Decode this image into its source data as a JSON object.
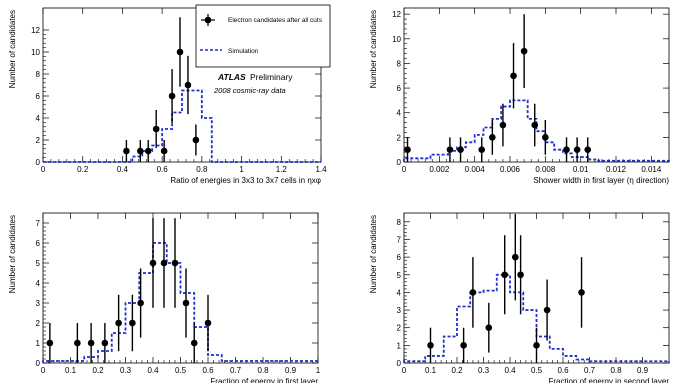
{
  "legend": {
    "data_label": "Electron candidates after all cuts",
    "sim_label": "Simulation",
    "atlas": "ATLAS",
    "preliminary": "Preliminary",
    "dataset": "2008 cosmic-ray data"
  },
  "colors": {
    "data": "#000000",
    "simulation": "#1f2fd0"
  },
  "chart_data": [
    {
      "type": "scatter",
      "xlabel": "Ratio of energies in 3x3 to 3x7 cells in ηxφ",
      "ylabel": "Number of candidates",
      "xlim": [
        0,
        1.4
      ],
      "ylim": [
        0,
        14
      ],
      "xticks": [
        0,
        0.2,
        0.4,
        0.6,
        0.8,
        1,
        1.2,
        1.4
      ],
      "xticklabels": [
        "0",
        "0.2",
        "0.4",
        "0.6",
        "0.8",
        "1",
        "1.2",
        "1.4"
      ],
      "yticks": [
        0,
        2,
        4,
        6,
        8,
        10,
        12
      ],
      "yticklabels": [
        "0",
        "2",
        "4",
        "6",
        "8",
        "10",
        "12"
      ],
      "series": [
        {
          "name": "Electron candidates after all cuts",
          "kind": "points",
          "x": [
            0.42,
            0.49,
            0.53,
            0.57,
            0.61,
            0.65,
            0.69,
            0.73,
            0.77
          ],
          "y": [
            1,
            1,
            1,
            3,
            1,
            6,
            10,
            7,
            2
          ],
          "yerr": [
            1.0,
            1.0,
            1.0,
            1.73,
            1.0,
            2.45,
            3.16,
            2.65,
            1.41
          ]
        },
        {
          "name": "Simulation",
          "kind": "step",
          "edges": [
            0.45,
            0.5,
            0.55,
            0.6,
            0.65,
            0.7,
            0.75,
            0.8,
            0.85
          ],
          "values": [
            0.5,
            1,
            1.5,
            3,
            4.5,
            6.5,
            6.5,
            4
          ]
        }
      ]
    },
    {
      "type": "scatter",
      "xlabel": "Shower width in first layer (η direction)",
      "ylabel": "Number of candidates",
      "xlim": [
        0,
        0.015
      ],
      "ylim": [
        0,
        12.5
      ],
      "xticks": [
        0,
        0.002,
        0.004,
        0.006,
        0.008,
        0.01,
        0.012,
        0.014
      ],
      "xticklabels": [
        "0",
        "0.002",
        "0.004",
        "0.006",
        "0.008",
        "0.01",
        "0.012",
        "0.014"
      ],
      "yticks": [
        0,
        2,
        4,
        6,
        8,
        10,
        12
      ],
      "yticklabels": [
        "0",
        "2",
        "4",
        "6",
        "8",
        "10",
        "12"
      ],
      "series": [
        {
          "name": "Electron candidates after all cuts",
          "kind": "points",
          "x": [
            0.0002,
            0.0026,
            0.0032,
            0.0044,
            0.005,
            0.0056,
            0.0062,
            0.0068,
            0.0074,
            0.008,
            0.0092,
            0.0098,
            0.0104
          ],
          "y": [
            1,
            1,
            1,
            1,
            2,
            3,
            7,
            9,
            3,
            2,
            1,
            1,
            1
          ],
          "yerr": [
            1.0,
            1.0,
            1.0,
            1.0,
            1.41,
            1.73,
            2.65,
            3.0,
            1.73,
            1.41,
            1.0,
            1.0,
            1.0
          ]
        },
        {
          "name": "Simulation",
          "kind": "step",
          "edges": [
            0.0,
            0.0015,
            0.0025,
            0.003,
            0.0035,
            0.004,
            0.0045,
            0.005,
            0.0055,
            0.006,
            0.007,
            0.0075,
            0.008,
            0.0085,
            0.009,
            0.0095,
            0.0105,
            0.011,
            0.015
          ],
          "values": [
            0.3,
            0.6,
            0.9,
            1.2,
            1.6,
            2.2,
            2.8,
            3.5,
            4.5,
            5.0,
            3.5,
            2.5,
            1.6,
            1.0,
            0.7,
            0.4,
            0.2,
            0.1
          ]
        }
      ]
    },
    {
      "type": "scatter",
      "xlabel": "Fraction of energy in first layer",
      "ylabel": "Number of candidates",
      "xlim": [
        0,
        1
      ],
      "ylim": [
        0,
        7.5
      ],
      "xticks": [
        0,
        0.1,
        0.2,
        0.3,
        0.4,
        0.5,
        0.6,
        0.7,
        0.8,
        0.9,
        1
      ],
      "xticklabels": [
        "0",
        "0.1",
        "0.2",
        "0.3",
        "0.4",
        "0.5",
        "0.6",
        "0.7",
        "0.8",
        "0.9",
        "1"
      ],
      "yticks": [
        0,
        1,
        2,
        3,
        4,
        5,
        6,
        7
      ],
      "yticklabels": [
        "0",
        "1",
        "2",
        "3",
        "4",
        "5",
        "6",
        "7"
      ],
      "series": [
        {
          "name": "Electron candidates after all cuts",
          "kind": "points",
          "x": [
            0.025,
            0.125,
            0.175,
            0.225,
            0.275,
            0.325,
            0.355,
            0.4,
            0.44,
            0.48,
            0.52,
            0.55,
            0.6
          ],
          "y": [
            1,
            1,
            1,
            1,
            2,
            2,
            3,
            5,
            5,
            5,
            3,
            1,
            2
          ],
          "yerr": [
            1.0,
            1.0,
            1.0,
            1.0,
            1.41,
            1.41,
            1.73,
            2.24,
            2.24,
            2.24,
            1.73,
            1.0,
            1.41
          ]
        },
        {
          "name": "Simulation",
          "kind": "step",
          "edges": [
            0.0,
            0.15,
            0.2,
            0.25,
            0.3,
            0.35,
            0.4,
            0.45,
            0.5,
            0.55,
            0.6,
            0.65,
            1.0
          ],
          "values": [
            0.1,
            0.3,
            0.6,
            1.5,
            3.0,
            4.5,
            6.0,
            5.0,
            3.5,
            1.8,
            0.4,
            0.1
          ]
        }
      ]
    },
    {
      "type": "scatter",
      "xlabel": "Fraction of energy in second layer",
      "ylabel": "Number of candidates",
      "xlim": [
        0,
        1
      ],
      "ylim": [
        0,
        8.5
      ],
      "xticks": [
        0,
        0.1,
        0.2,
        0.3,
        0.4,
        0.5,
        0.6,
        0.7,
        0.8,
        0.9
      ],
      "xticklabels": [
        "0",
        "0.1",
        "0.2",
        "0.3",
        "0.4",
        "0.5",
        "0.6",
        "0.7",
        "0.8",
        "0.9"
      ],
      "yticks": [
        0,
        1,
        2,
        3,
        4,
        5,
        6,
        7,
        8
      ],
      "yticklabels": [
        "0",
        "1",
        "2",
        "3",
        "4",
        "5",
        "6",
        "7",
        "8"
      ],
      "series": [
        {
          "name": "Electron candidates after all cuts",
          "kind": "points",
          "x": [
            0.1,
            0.225,
            0.26,
            0.32,
            0.38,
            0.42,
            0.44,
            0.5,
            0.54,
            0.67
          ],
          "y": [
            1,
            1,
            4,
            2,
            5,
            6,
            5,
            1,
            3,
            4
          ],
          "yerr": [
            1.0,
            1.0,
            2.0,
            1.41,
            2.24,
            2.45,
            2.24,
            1.0,
            1.73,
            2.0
          ]
        },
        {
          "name": "Simulation",
          "kind": "step",
          "edges": [
            0.0,
            0.08,
            0.15,
            0.2,
            0.25,
            0.3,
            0.35,
            0.4,
            0.45,
            0.5,
            0.55,
            0.6,
            0.65,
            0.7,
            1.0
          ],
          "values": [
            0.1,
            0.4,
            1.5,
            3.2,
            4.0,
            4.1,
            5.0,
            4.0,
            3.0,
            1.5,
            0.8,
            0.4,
            0.2,
            0.1
          ]
        }
      ]
    }
  ]
}
